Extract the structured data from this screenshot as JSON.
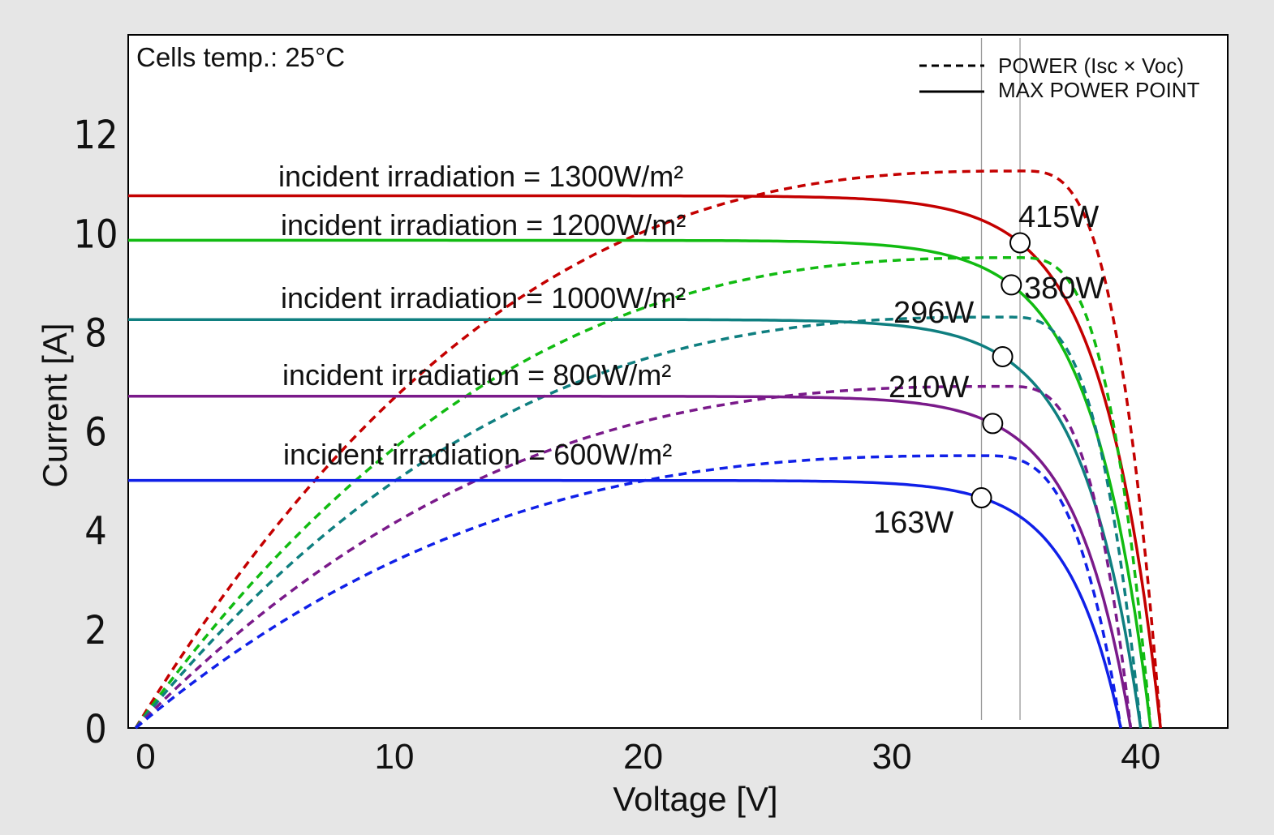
{
  "chart_data": {
    "type": "line",
    "title": "",
    "annotation": "Cells temp.: 25°C",
    "xlabel": "Voltage [V]",
    "ylabel": "Current [A]",
    "xlim": [
      -0.7,
      43.5
    ],
    "ylim": [
      0,
      14
    ],
    "x_ticks": [
      0,
      10,
      20,
      30,
      40
    ],
    "y_ticks": [
      0,
      2,
      4,
      6,
      8,
      10,
      12
    ],
    "grid": false,
    "legend": {
      "placement": "top-right",
      "entries": [
        {
          "label": "POWER (Isc × Voc)",
          "style": "dashed"
        },
        {
          "label": "MAX POWER POINT",
          "style": "solid"
        }
      ]
    },
    "reference_lines_x": [
      33.6,
      35.15
    ],
    "series": [
      {
        "label": "incident irradiation = 1300W/m²",
        "irradiance": 1300,
        "color": "#c40000",
        "isc": 10.75,
        "voc": 40.8,
        "mpp_v": 35.15,
        "mpp_i": 9.8,
        "power_peak_v": 35.2,
        "power_peak_i": 11.25,
        "mpp_label": "415W"
      },
      {
        "label": "incident irradiation = 1200W/m²",
        "irradiance": 1200,
        "color": "#11bb11",
        "isc": 9.85,
        "voc": 40.4,
        "mpp_v": 34.8,
        "mpp_i": 8.95,
        "power_peak_v": 35.0,
        "power_peak_i": 9.5,
        "mpp_label": "380W"
      },
      {
        "label": "incident irradiation = 1000W/m²",
        "irradiance": 1000,
        "color": "#0f7f80",
        "isc": 8.25,
        "voc": 40.0,
        "mpp_v": 34.45,
        "mpp_i": 7.5,
        "power_peak_v": 34.6,
        "power_peak_i": 8.3,
        "mpp_label": "296W"
      },
      {
        "label": "incident irradiation = 800W/m²",
        "irradiance": 800,
        "color": "#7a1a8a",
        "isc": 6.7,
        "voc": 39.6,
        "mpp_v": 34.05,
        "mpp_i": 6.15,
        "power_peak_v": 34.6,
        "power_peak_i": 6.9,
        "mpp_label": "210W"
      },
      {
        "label": "incident irradiation = 600W/m²",
        "irradiance": 600,
        "color": "#1020e8",
        "isc": 5.0,
        "voc": 39.2,
        "mpp_v": 33.6,
        "mpp_i": 4.65,
        "power_peak_v": 33.6,
        "power_peak_i": 5.5,
        "mpp_label": "163W"
      }
    ]
  }
}
